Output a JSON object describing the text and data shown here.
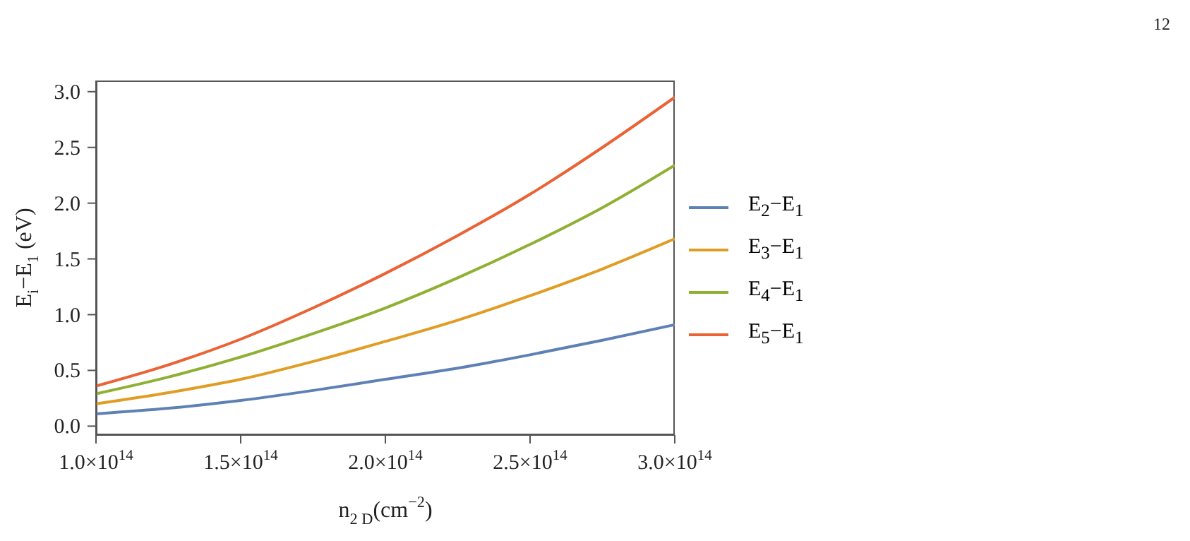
{
  "chart_data": {
    "type": "line",
    "xlabel": "n$_{2 D}$(cm$^{−2}$)",
    "ylabel": "E$_{i}$−E$_{1}$ (eV)",
    "annotations": [
      "12"
    ],
    "x": [
      100000000000000.0,
      125000000000000.0,
      150000000000000.0,
      175000000000000.0,
      200000000000000.0,
      225000000000000.0,
      250000000000000.0,
      275000000000000.0,
      300000000000000.0
    ],
    "series": [
      {
        "name": "E$_{2}$−E$_{1}$",
        "color": "#5e81b5",
        "values": [
          0.11,
          0.16,
          0.23,
          0.32,
          0.42,
          0.52,
          0.64,
          0.77,
          0.91
        ]
      },
      {
        "name": "E$_{3}$−E$_{1}$",
        "color": "#e19c24",
        "values": [
          0.2,
          0.3,
          0.42,
          0.58,
          0.76,
          0.95,
          1.17,
          1.41,
          1.68
        ]
      },
      {
        "name": "E$_{4}$−E$_{1}$",
        "color": "#8fb032",
        "values": [
          0.29,
          0.44,
          0.62,
          0.83,
          1.06,
          1.33,
          1.63,
          1.96,
          2.34
        ]
      },
      {
        "name": "E$_{5}$−E$_{1}$",
        "color": "#eb6235",
        "values": [
          0.36,
          0.55,
          0.78,
          1.06,
          1.37,
          1.71,
          2.08,
          2.5,
          2.95
        ]
      }
    ],
    "xlim": [
      100000000000000.0,
      300000000000000.0
    ],
    "xticks": [
      {
        "value": 100000000000000.0,
        "label": "1.0×10$^{14}$"
      },
      {
        "value": 150000000000000.0,
        "label": "1.5×10$^{14}$"
      },
      {
        "value": 200000000000000.0,
        "label": "2.0×10$^{14}$"
      },
      {
        "value": 250000000000000.0,
        "label": "2.5×10$^{14}$"
      },
      {
        "value": 300000000000000.0,
        "label": "3.0×10$^{14}$"
      }
    ],
    "ylim": [
      -0.08,
      3.1
    ],
    "yticks": [
      {
        "value": 0,
        "label": "0.0"
      },
      {
        "value": 0.5,
        "label": "0.5"
      },
      {
        "value": 1,
        "label": "1.0"
      },
      {
        "value": 1.5,
        "label": "1.5"
      },
      {
        "value": 2,
        "label": "2.0"
      },
      {
        "value": 2.5,
        "label": "2.5"
      },
      {
        "value": 3,
        "label": "3.0"
      }
    ],
    "grid": false,
    "legend": "right",
    "marker": "none",
    "line_style": "solid"
  }
}
